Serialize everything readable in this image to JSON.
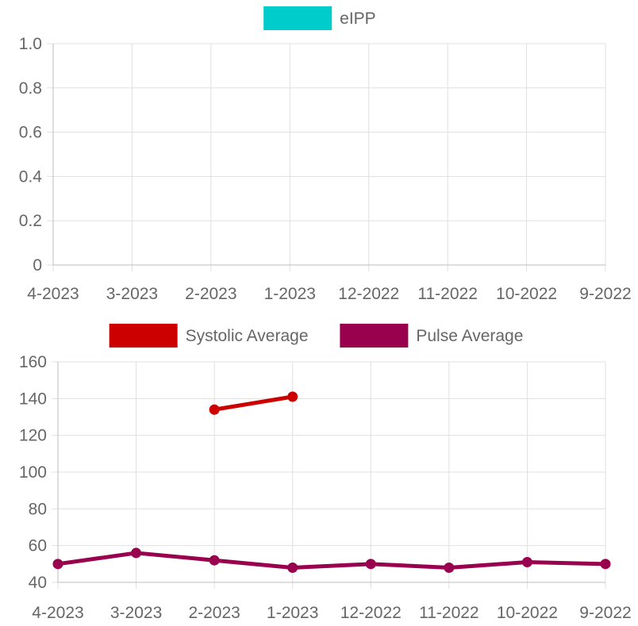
{
  "chart_data": [
    {
      "type": "line",
      "categories": [
        "4-2023",
        "3-2023",
        "2-2023",
        "1-2023",
        "12-2022",
        "11-2022",
        "10-2022",
        "9-2022"
      ],
      "series": [
        {
          "name": "eIPP",
          "color": "#00cccc",
          "values": [
            null,
            null,
            null,
            null,
            null,
            null,
            null,
            null
          ]
        }
      ],
      "ylim": [
        0,
        1
      ],
      "yticks": [
        "0",
        "0.2",
        "0.4",
        "0.6",
        "0.8",
        "1.0"
      ],
      "ytick_values": [
        0,
        0.2,
        0.4,
        0.6,
        0.8,
        1.0
      ],
      "grid": true,
      "legend": "top"
    },
    {
      "type": "line",
      "categories": [
        "4-2023",
        "3-2023",
        "2-2023",
        "1-2023",
        "12-2022",
        "11-2022",
        "10-2022",
        "9-2022"
      ],
      "series": [
        {
          "name": "Systolic Average",
          "color": "#cc0000",
          "values": [
            null,
            null,
            134,
            141,
            null,
            null,
            null,
            null
          ]
        },
        {
          "name": "Pulse Average",
          "color": "#99004d",
          "values": [
            50,
            56,
            52,
            48,
            50,
            48,
            51,
            50
          ]
        }
      ],
      "ylim": [
        40,
        160
      ],
      "yticks": [
        "40",
        "60",
        "80",
        "100",
        "120",
        "140",
        "160"
      ],
      "ytick_values": [
        40,
        60,
        80,
        100,
        120,
        140,
        160
      ],
      "grid": true,
      "legend": "top"
    }
  ]
}
